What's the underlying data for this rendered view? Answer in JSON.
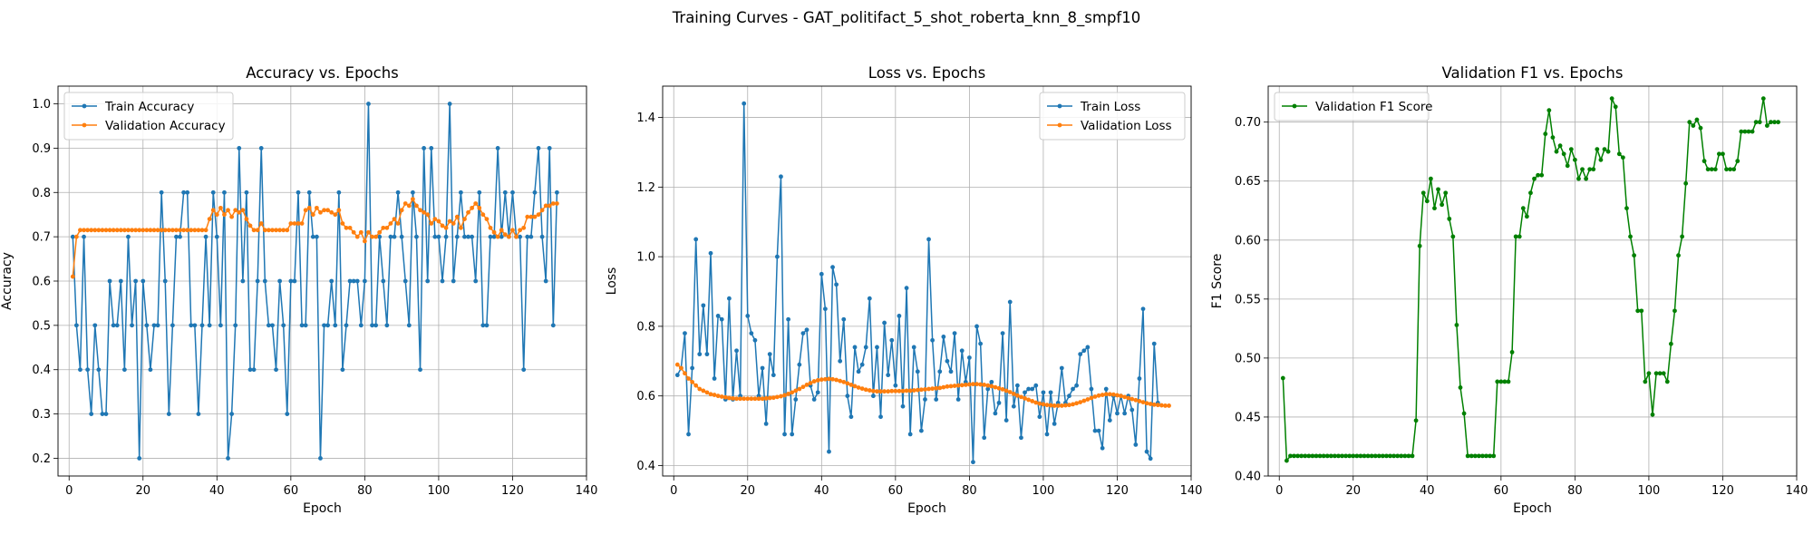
{
  "suptitle": "Training Curves - GAT_politifact_5_shot_roberta_knn_8_smpf10",
  "colors": {
    "train": "#1f77b4",
    "validation": "#ff7f0e",
    "f1": "#008000"
  },
  "chart_data": [
    {
      "type": "line",
      "title": "Accuracy vs. Epochs",
      "xlabel": "Epoch",
      "ylabel": "Accuracy",
      "xlim": [
        -3,
        140
      ],
      "ylim": [
        0.16,
        1.04
      ],
      "xticks": [
        0,
        20,
        40,
        60,
        80,
        100,
        120,
        140
      ],
      "yticks": [
        0.2,
        0.3,
        0.4,
        0.5,
        0.6,
        0.7,
        0.8,
        0.9,
        1.0
      ],
      "ytick_decimals": 1,
      "grid": true,
      "legend_position": "upper-left",
      "series": [
        {
          "name": "Train Accuracy",
          "color": "#1f77b4",
          "y": [
            0.7,
            0.5,
            0.4,
            0.7,
            0.4,
            0.3,
            0.5,
            0.4,
            0.3,
            0.3,
            0.6,
            0.5,
            0.5,
            0.6,
            0.4,
            0.7,
            0.5,
            0.6,
            0.2,
            0.6,
            0.5,
            0.4,
            0.5,
            0.5,
            0.8,
            0.6,
            0.3,
            0.5,
            0.7,
            0.7,
            0.8,
            0.8,
            0.5,
            0.5,
            0.3,
            0.5,
            0.7,
            0.5,
            0.8,
            0.7,
            0.5,
            0.8,
            0.2,
            0.3,
            0.5,
            0.9,
            0.6,
            0.8,
            0.4,
            0.4,
            0.6,
            0.9,
            0.6,
            0.5,
            0.5,
            0.4,
            0.6,
            0.5,
            0.3,
            0.6,
            0.6,
            0.8,
            0.5,
            0.5,
            0.8,
            0.7,
            0.7,
            0.2,
            0.5,
            0.5,
            0.6,
            0.5,
            0.8,
            0.4,
            0.5,
            0.6,
            0.6,
            0.6,
            0.5,
            0.6,
            1.0,
            0.5,
            0.5,
            0.7,
            0.6,
            0.5,
            0.7,
            0.7,
            0.8,
            0.7,
            0.6,
            0.5,
            0.8,
            0.7,
            0.4,
            0.9,
            0.6,
            0.9,
            0.7,
            0.7,
            0.6,
            0.7,
            1.0,
            0.6,
            0.7,
            0.8,
            0.7,
            0.7,
            0.7,
            0.6,
            0.8,
            0.5,
            0.5,
            0.7,
            0.7,
            0.9,
            0.7,
            0.8,
            0.7,
            0.8,
            0.7,
            0.7,
            0.4,
            0.7,
            0.7,
            0.8,
            0.9,
            0.7,
            0.6,
            0.9,
            0.5,
            0.8
          ]
        },
        {
          "name": "Validation Accuracy",
          "color": "#ff7f0e",
          "y": [
            0.61,
            0.7,
            0.715,
            0.715,
            0.715,
            0.715,
            0.715,
            0.715,
            0.715,
            0.715,
            0.715,
            0.715,
            0.715,
            0.715,
            0.715,
            0.715,
            0.715,
            0.715,
            0.715,
            0.715,
            0.715,
            0.715,
            0.715,
            0.715,
            0.715,
            0.715,
            0.715,
            0.715,
            0.715,
            0.715,
            0.715,
            0.715,
            0.715,
            0.715,
            0.715,
            0.715,
            0.715,
            0.74,
            0.76,
            0.75,
            0.765,
            0.75,
            0.76,
            0.745,
            0.76,
            0.755,
            0.76,
            0.74,
            0.725,
            0.715,
            0.715,
            0.73,
            0.715,
            0.715,
            0.715,
            0.715,
            0.715,
            0.715,
            0.715,
            0.73,
            0.73,
            0.73,
            0.73,
            0.76,
            0.765,
            0.75,
            0.765,
            0.755,
            0.76,
            0.76,
            0.755,
            0.75,
            0.76,
            0.73,
            0.72,
            0.72,
            0.71,
            0.7,
            0.71,
            0.69,
            0.71,
            0.7,
            0.7,
            0.71,
            0.72,
            0.72,
            0.73,
            0.74,
            0.73,
            0.76,
            0.775,
            0.77,
            0.785,
            0.77,
            0.76,
            0.755,
            0.75,
            0.73,
            0.74,
            0.735,
            0.725,
            0.72,
            0.735,
            0.73,
            0.745,
            0.72,
            0.74,
            0.755,
            0.765,
            0.775,
            0.765,
            0.75,
            0.74,
            0.72,
            0.71,
            0.7,
            0.715,
            0.705,
            0.7,
            0.715,
            0.7,
            0.715,
            0.72,
            0.745,
            0.745,
            0.745,
            0.75,
            0.76,
            0.77,
            0.77,
            0.775,
            0.775
          ]
        }
      ]
    },
    {
      "type": "line",
      "title": "Loss vs. Epochs",
      "xlabel": "Epoch",
      "ylabel": "Loss",
      "xlim": [
        -3,
        140
      ],
      "ylim": [
        0.37,
        1.49
      ],
      "xticks": [
        0,
        20,
        40,
        60,
        80,
        100,
        120,
        140
      ],
      "yticks": [
        0.4,
        0.6,
        0.8,
        1.0,
        1.2,
        1.4
      ],
      "ytick_decimals": 1,
      "grid": true,
      "legend_position": "upper-right",
      "series": [
        {
          "name": "Train Loss",
          "color": "#1f77b4",
          "y": [
            0.66,
            0.68,
            0.78,
            0.49,
            0.68,
            1.05,
            0.72,
            0.86,
            0.72,
            1.01,
            0.65,
            0.83,
            0.82,
            0.59,
            0.88,
            0.59,
            0.73,
            0.6,
            1.44,
            0.83,
            0.78,
            0.76,
            0.6,
            0.68,
            0.52,
            0.72,
            0.66,
            1.0,
            1.23,
            0.49,
            0.82,
            0.49,
            0.59,
            0.69,
            0.78,
            0.79,
            0.63,
            0.59,
            0.61,
            0.95,
            0.85,
            0.44,
            0.97,
            0.92,
            0.7,
            0.82,
            0.6,
            0.54,
            0.74,
            0.67,
            0.69,
            0.74,
            0.88,
            0.6,
            0.74,
            0.54,
            0.81,
            0.66,
            0.76,
            0.63,
            0.83,
            0.57,
            0.91,
            0.49,
            0.74,
            0.67,
            0.5,
            0.59,
            1.05,
            0.76,
            0.59,
            0.67,
            0.77,
            0.7,
            0.67,
            0.78,
            0.59,
            0.73,
            0.64,
            0.71,
            0.41,
            0.8,
            0.75,
            0.48,
            0.62,
            0.64,
            0.55,
            0.58,
            0.78,
            0.53,
            0.87,
            0.57,
            0.63,
            0.48,
            0.61,
            0.62,
            0.62,
            0.63,
            0.54,
            0.61,
            0.49,
            0.61,
            0.52,
            0.58,
            0.68,
            0.58,
            0.6,
            0.62,
            0.63,
            0.72,
            0.73,
            0.74,
            0.62,
            0.5,
            0.5,
            0.45,
            0.62,
            0.53,
            0.6,
            0.55,
            0.6,
            0.55,
            0.6,
            0.56,
            0.46,
            0.65,
            0.85,
            0.44,
            0.42,
            0.75,
            0.58
          ]
        },
        {
          "name": "Validation Loss",
          "color": "#ff7f0e",
          "y": [
            0.69,
            0.68,
            0.665,
            0.65,
            0.64,
            0.63,
            0.62,
            0.615,
            0.61,
            0.605,
            0.603,
            0.6,
            0.598,
            0.596,
            0.594,
            0.593,
            0.592,
            0.592,
            0.592,
            0.592,
            0.592,
            0.592,
            0.592,
            0.592,
            0.593,
            0.594,
            0.595,
            0.597,
            0.599,
            0.602,
            0.606,
            0.61,
            0.615,
            0.62,
            0.626,
            0.632,
            0.637,
            0.642,
            0.645,
            0.647,
            0.648,
            0.649,
            0.648,
            0.646,
            0.643,
            0.64,
            0.636,
            0.632,
            0.628,
            0.624,
            0.621,
            0.618,
            0.616,
            0.614,
            0.613,
            0.613,
            0.613,
            0.613,
            0.614,
            0.614,
            0.614,
            0.614,
            0.615,
            0.615,
            0.616,
            0.617,
            0.618,
            0.619,
            0.62,
            0.621,
            0.622,
            0.623,
            0.625,
            0.627,
            0.628,
            0.629,
            0.63,
            0.631,
            0.632,
            0.633,
            0.634,
            0.634,
            0.633,
            0.632,
            0.63,
            0.628,
            0.625,
            0.622,
            0.619,
            0.615,
            0.611,
            0.606,
            0.601,
            0.597,
            0.593,
            0.589,
            0.585,
            0.581,
            0.578,
            0.576,
            0.574,
            0.573,
            0.572,
            0.572,
            0.572,
            0.573,
            0.574,
            0.576,
            0.579,
            0.582,
            0.586,
            0.59,
            0.594,
            0.598,
            0.601,
            0.603,
            0.605,
            0.605,
            0.604,
            0.602,
            0.6,
            0.597,
            0.594,
            0.591,
            0.588,
            0.585,
            0.582,
            0.579,
            0.577,
            0.575,
            0.574,
            0.573,
            0.572,
            0.572
          ]
        }
      ]
    },
    {
      "type": "line",
      "title": "Validation F1 vs. Epochs",
      "xlabel": "Epoch",
      "ylabel": "F1 Score",
      "xlim": [
        -3,
        140
      ],
      "ylim": [
        0.4,
        0.7305
      ],
      "xticks": [
        0,
        20,
        40,
        60,
        80,
        100,
        120,
        140
      ],
      "yticks": [
        0.4,
        0.45,
        0.5,
        0.55,
        0.6,
        0.65,
        0.7
      ],
      "ytick_decimals": 2,
      "grid": true,
      "legend_position": "upper-left",
      "series": [
        {
          "name": "Validation F1 Score",
          "color": "#008000",
          "y": [
            0.483,
            0.413,
            0.417,
            0.417,
            0.417,
            0.417,
            0.417,
            0.417,
            0.417,
            0.417,
            0.417,
            0.417,
            0.417,
            0.417,
            0.417,
            0.417,
            0.417,
            0.417,
            0.417,
            0.417,
            0.417,
            0.417,
            0.417,
            0.417,
            0.417,
            0.417,
            0.417,
            0.417,
            0.417,
            0.417,
            0.417,
            0.417,
            0.417,
            0.417,
            0.417,
            0.417,
            0.447,
            0.595,
            0.64,
            0.633,
            0.652,
            0.627,
            0.643,
            0.63,
            0.64,
            0.618,
            0.603,
            0.528,
            0.475,
            0.453,
            0.417,
            0.417,
            0.417,
            0.417,
            0.417,
            0.417,
            0.417,
            0.417,
            0.48,
            0.48,
            0.48,
            0.48,
            0.505,
            0.603,
            0.603,
            0.627,
            0.62,
            0.64,
            0.652,
            0.655,
            0.655,
            0.69,
            0.71,
            0.687,
            0.675,
            0.68,
            0.673,
            0.663,
            0.677,
            0.668,
            0.652,
            0.66,
            0.652,
            0.66,
            0.66,
            0.677,
            0.668,
            0.677,
            0.675,
            0.72,
            0.713,
            0.673,
            0.67,
            0.627,
            0.603,
            0.587,
            0.54,
            0.54,
            0.48,
            0.487,
            0.452,
            0.487,
            0.487,
            0.487,
            0.48,
            0.512,
            0.54,
            0.587,
            0.603,
            0.648,
            0.7,
            0.697,
            0.702,
            0.695,
            0.667,
            0.66,
            0.66,
            0.66,
            0.673,
            0.673,
            0.66,
            0.66,
            0.66,
            0.667,
            0.692,
            0.692,
            0.692,
            0.692,
            0.7,
            0.7,
            0.72,
            0.697,
            0.7,
            0.7,
            0.7
          ]
        }
      ]
    }
  ]
}
